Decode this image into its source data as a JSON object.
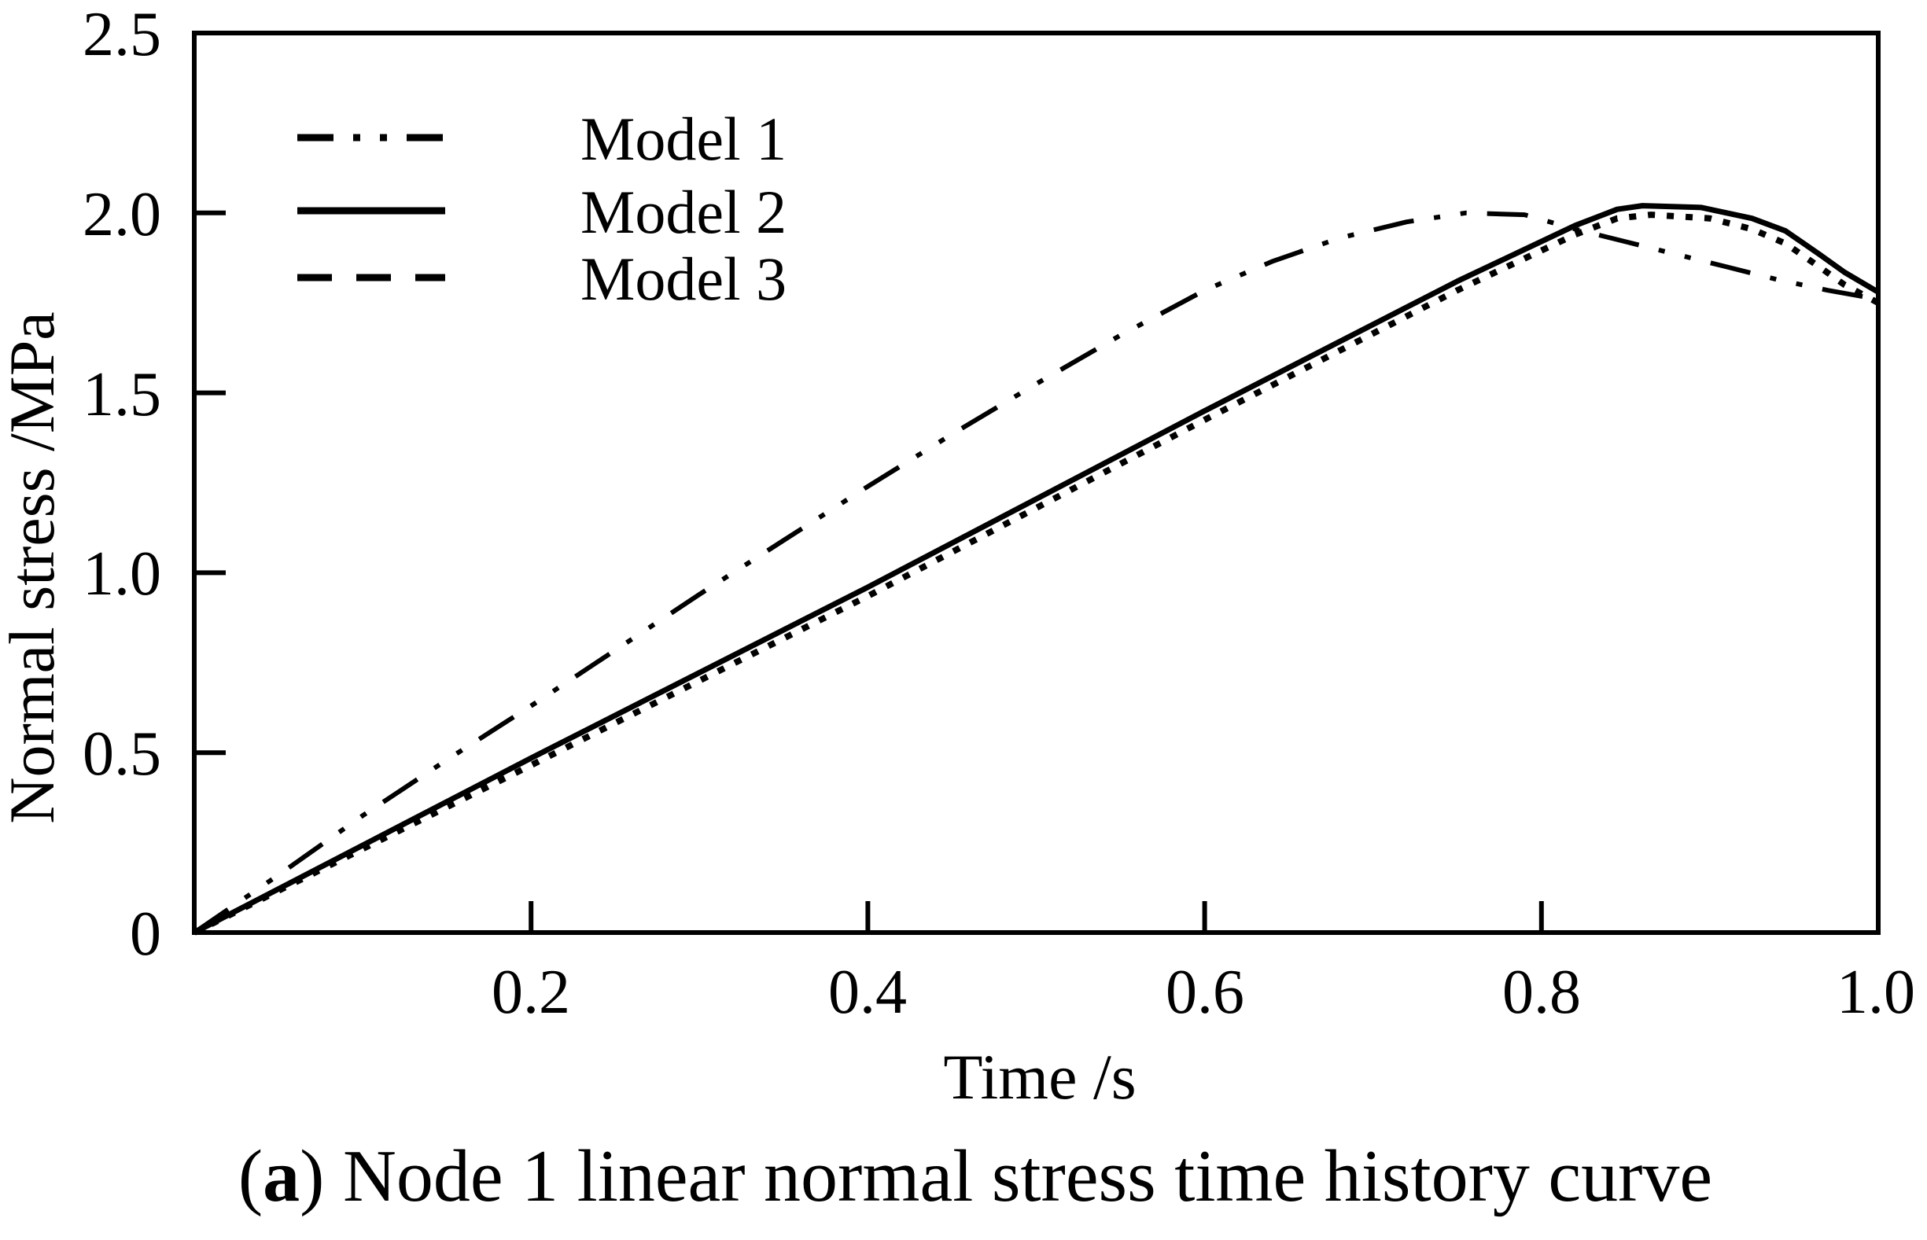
{
  "figure": {
    "caption_prefix": "(",
    "caption_bold": "a",
    "caption_suffix": ") Node 1 linear normal stress time history curve"
  },
  "chart_data": {
    "type": "line",
    "title": "",
    "xlabel": "Time /s",
    "ylabel": "Normal stress /MPa",
    "xlim": [
      0,
      1.0
    ],
    "ylim": [
      0,
      2.5
    ],
    "x_ticks": [
      0.2,
      0.4,
      0.6,
      0.8,
      1.0
    ],
    "x_tick_labels": [
      "0.2",
      "0.4",
      "0.6",
      "0.8",
      "1.0"
    ],
    "y_ticks": [
      0,
      0.5,
      1.0,
      1.5,
      2.0,
      2.5
    ],
    "y_tick_labels": [
      "0",
      "0.5",
      "1.0",
      "1.5",
      "2.0",
      "2.5"
    ],
    "grid": false,
    "legend_position": "upper-left",
    "colors": {
      "line": "#000000",
      "background": "#ffffff"
    },
    "series": [
      {
        "name": "Model 1",
        "line_style": "dash-dot-dot",
        "points": [
          [
            0,
            0
          ],
          [
            0.05,
            0.16
          ],
          [
            0.1,
            0.325
          ],
          [
            0.15,
            0.48
          ],
          [
            0.2,
            0.63
          ],
          [
            0.25,
            0.785
          ],
          [
            0.3,
            0.94
          ],
          [
            0.35,
            1.09
          ],
          [
            0.4,
            1.24
          ],
          [
            0.45,
            1.385
          ],
          [
            0.5,
            1.525
          ],
          [
            0.55,
            1.66
          ],
          [
            0.6,
            1.785
          ],
          [
            0.64,
            1.865
          ],
          [
            0.68,
            1.93
          ],
          [
            0.72,
            1.975
          ],
          [
            0.755,
            2.0
          ],
          [
            0.79,
            1.995
          ],
          [
            0.82,
            1.955
          ],
          [
            0.85,
            1.92
          ],
          [
            0.88,
            1.885
          ],
          [
            0.91,
            1.85
          ],
          [
            0.94,
            1.815
          ],
          [
            0.97,
            1.785
          ],
          [
            1.0,
            1.76
          ]
        ]
      },
      {
        "name": "Model 2",
        "line_style": "solid",
        "points": [
          [
            0,
            0
          ],
          [
            0.2,
            0.485
          ],
          [
            0.4,
            0.96
          ],
          [
            0.6,
            1.45
          ],
          [
            0.75,
            1.81
          ],
          [
            0.82,
            1.965
          ],
          [
            0.845,
            2.01
          ],
          [
            0.86,
            2.02
          ],
          [
            0.895,
            2.015
          ],
          [
            0.925,
            1.985
          ],
          [
            0.945,
            1.95
          ],
          [
            0.965,
            1.885
          ],
          [
            0.98,
            1.835
          ],
          [
            1.0,
            1.78
          ]
        ]
      },
      {
        "name": "Model 3",
        "line_style": "dashed",
        "points": [
          [
            0,
            0
          ],
          [
            0.2,
            0.465
          ],
          [
            0.4,
            0.935
          ],
          [
            0.6,
            1.425
          ],
          [
            0.75,
            1.785
          ],
          [
            0.82,
            1.94
          ],
          [
            0.845,
            1.985
          ],
          [
            0.865,
            1.995
          ],
          [
            0.9,
            1.985
          ],
          [
            0.925,
            1.955
          ],
          [
            0.945,
            1.915
          ],
          [
            0.965,
            1.85
          ],
          [
            0.98,
            1.8
          ],
          [
            1.0,
            1.75
          ]
        ]
      }
    ]
  }
}
